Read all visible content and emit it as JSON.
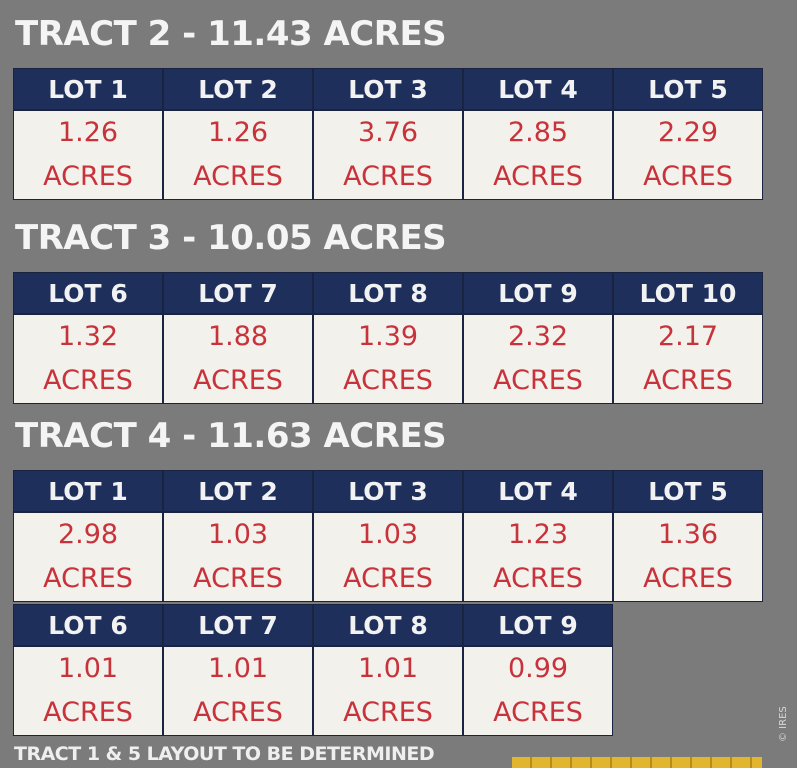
{
  "tracts": [
    {
      "title": "TRACT 2 - 11.43 ACRES",
      "lots": [
        {
          "label": "LOT 1",
          "value": "1.26",
          "unit": "ACRES"
        },
        {
          "label": "LOT 2",
          "value": "1.26",
          "unit": "ACRES"
        },
        {
          "label": "LOT 3",
          "value": "3.76",
          "unit": "ACRES"
        },
        {
          "label": "LOT 4",
          "value": "2.85",
          "unit": "ACRES"
        },
        {
          "label": "LOT 5",
          "value": "2.29",
          "unit": "ACRES"
        }
      ]
    },
    {
      "title": "TRACT 3 - 10.05 ACRES",
      "lots": [
        {
          "label": "LOT 6",
          "value": "1.32",
          "unit": "ACRES"
        },
        {
          "label": "LOT 7",
          "value": "1.88",
          "unit": "ACRES"
        },
        {
          "label": "LOT 8",
          "value": "1.39",
          "unit": "ACRES"
        },
        {
          "label": "LOT 9",
          "value": "2.32",
          "unit": "ACRES"
        },
        {
          "label": "LOT 10",
          "value": "2.17",
          "unit": "ACRES"
        }
      ]
    },
    {
      "title": "TRACT 4 - 11.63 ACRES",
      "lots": [
        {
          "label": "LOT 1",
          "value": "2.98",
          "unit": "ACRES"
        },
        {
          "label": "LOT 2",
          "value": "1.03",
          "unit": "ACRES"
        },
        {
          "label": "LOT 3",
          "value": "1.03",
          "unit": "ACRES"
        },
        {
          "label": "LOT 4",
          "value": "1.23",
          "unit": "ACRES"
        },
        {
          "label": "LOT 5",
          "value": "1.36",
          "unit": "ACRES"
        },
        {
          "label": "LOT 6",
          "value": "1.01",
          "unit": "ACRES"
        },
        {
          "label": "LOT 7",
          "value": "1.01",
          "unit": "ACRES"
        },
        {
          "label": "LOT 8",
          "value": "1.01",
          "unit": "ACRES"
        },
        {
          "label": "LOT 9",
          "value": "0.99",
          "unit": "ACRES"
        }
      ]
    }
  ],
  "footer": "TRACT 1 & 5 LAYOUT TO BE DETERMINED",
  "credit": "© IRES",
  "colors": {
    "background": "#7b7b7c",
    "header": "#1e2f5c",
    "value_text": "#c8323a",
    "cell": "#f3f1ec"
  }
}
